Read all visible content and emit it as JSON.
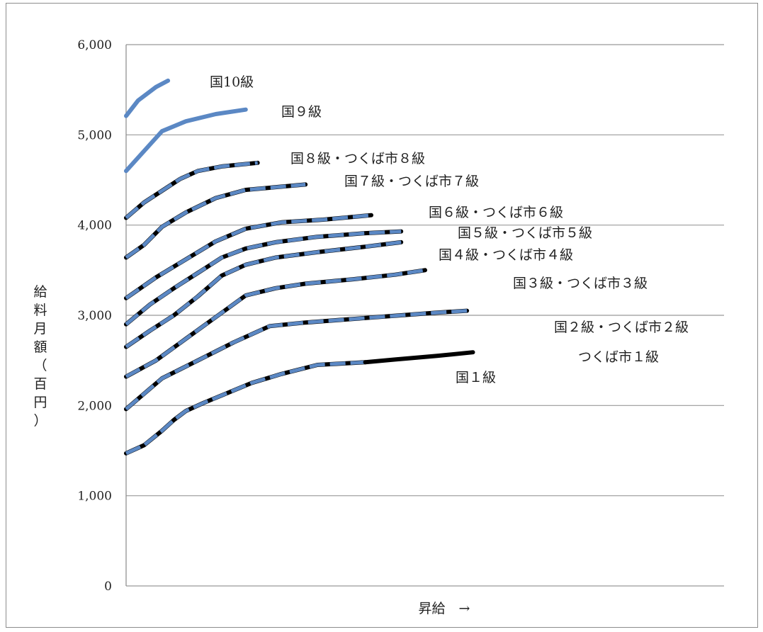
{
  "chart_data": {
    "type": "line",
    "title": "",
    "xlabel": "昇給　→",
    "ylabel": "給料月額（百円）",
    "ylim": [
      0,
      6000
    ],
    "yticks": [
      {
        "value": 0,
        "label": "0"
      },
      {
        "value": 1000,
        "label": "1,000"
      },
      {
        "value": 2000,
        "label": "2,000"
      },
      {
        "value": 3000,
        "label": "3,000"
      },
      {
        "value": 4000,
        "label": "4,000"
      },
      {
        "value": 5000,
        "label": "5,000"
      },
      {
        "value": 6000,
        "label": "6,000"
      }
    ],
    "grid": true,
    "legend": "none",
    "colors": {
      "national": "#5b88c4",
      "tsukuba": "#000000",
      "grid": "#999999"
    },
    "series": [
      {
        "label": "国10級",
        "style": "national",
        "x": [
          0,
          2,
          5,
          7
        ],
        "y": [
          5210,
          5380,
          5530,
          5600
        ]
      },
      {
        "label": "国９級",
        "style": "national",
        "x": [
          0,
          3,
          6,
          10,
          15,
          20
        ],
        "y": [
          4600,
          4820,
          5040,
          5150,
          5230,
          5280
        ]
      },
      {
        "label": "国８級・つくば市８級",
        "style": "dual",
        "x": [
          0,
          3,
          6,
          9,
          12,
          16,
          22
        ],
        "y": [
          4080,
          4250,
          4380,
          4510,
          4600,
          4650,
          4690
        ]
      },
      {
        "label": "国７級・つくば市７級",
        "style": "dual",
        "x": [
          0,
          3,
          6,
          10,
          15,
          20,
          30
        ],
        "y": [
          3640,
          3780,
          3980,
          4140,
          4300,
          4390,
          4450
        ]
      },
      {
        "label": "国６級・つくば市６級",
        "style": "dual",
        "x": [
          0,
          5,
          10,
          15,
          20,
          26,
          33,
          41
        ],
        "y": [
          3190,
          3420,
          3620,
          3820,
          3960,
          4030,
          4060,
          4110
        ]
      },
      {
        "label": "国５級・つくば市５級",
        "style": "dual",
        "x": [
          0,
          4,
          8,
          12,
          16,
          20,
          25,
          32,
          40,
          46
        ],
        "y": [
          2900,
          3120,
          3300,
          3470,
          3640,
          3740,
          3810,
          3870,
          3910,
          3930
        ]
      },
      {
        "label": "国４級・つくば市４級",
        "style": "dual",
        "x": [
          0,
          4,
          8,
          12,
          16,
          20,
          25,
          32,
          40,
          46
        ],
        "y": [
          2650,
          2830,
          3000,
          3210,
          3440,
          3560,
          3640,
          3700,
          3760,
          3810
        ]
      },
      {
        "label": "国３級・つくば市３級",
        "style": "dual",
        "x": [
          0,
          5,
          10,
          15,
          20,
          25,
          30,
          38,
          45,
          50
        ],
        "y": [
          2320,
          2500,
          2740,
          2980,
          3220,
          3300,
          3350,
          3400,
          3450,
          3500
        ]
      },
      {
        "label": "国２級・つくば市２級",
        "style": "dual",
        "x": [
          0,
          6,
          12,
          18,
          24,
          30,
          36,
          44,
          52,
          57
        ],
        "y": [
          1960,
          2300,
          2500,
          2700,
          2880,
          2920,
          2950,
          2990,
          3030,
          3050
        ]
      },
      {
        "label": "国１級",
        "style": "dual",
        "x": [
          0,
          3,
          6,
          8,
          10,
          13,
          17,
          21,
          26,
          32,
          40
        ],
        "y": [
          1470,
          1560,
          1720,
          1840,
          1940,
          2030,
          2140,
          2250,
          2350,
          2450,
          2480
        ]
      },
      {
        "label": "つくば市１級",
        "style": "tsukuba",
        "x": [
          40,
          45,
          52,
          58
        ],
        "y": [
          2480,
          2510,
          2550,
          2590
        ]
      }
    ],
    "labels": [
      {
        "text": "国10級"
      },
      {
        "text": "国９級"
      },
      {
        "text": "国８級・つくば市８級"
      },
      {
        "text": "国７級・つくば市７級"
      },
      {
        "text": "国６級・つくば市６級"
      },
      {
        "text": "国５級・つくば市５級"
      },
      {
        "text": "国４級・つくば市４級"
      },
      {
        "text": "国３級・つくば市３級"
      },
      {
        "text": "国２級・つくば市２級"
      },
      {
        "text": "つくば市１級"
      },
      {
        "text": "国１級"
      }
    ]
  }
}
